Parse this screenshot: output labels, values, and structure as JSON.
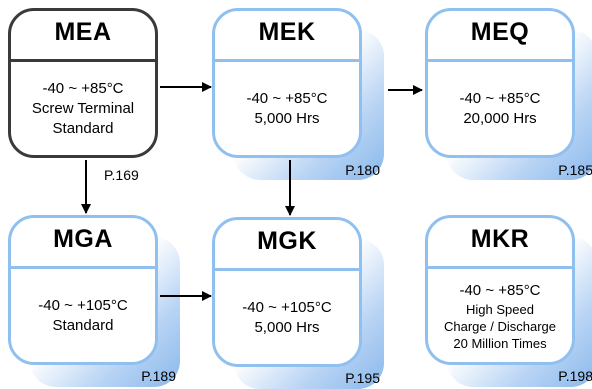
{
  "cards": {
    "mea": {
      "title": "MEA",
      "lines": [
        "-40 ~ +85°C",
        "Screw Terminal",
        "Standard"
      ],
      "page": "P.169"
    },
    "mek": {
      "title": "MEK",
      "lines": [
        "-40 ~ +85°C",
        "5,000 Hrs"
      ],
      "page": "P.180"
    },
    "meq": {
      "title": "MEQ",
      "lines": [
        "-40 ~ +85°C",
        "20,000 Hrs"
      ],
      "page": "P.185"
    },
    "mga": {
      "title": "MGA",
      "lines": [
        "-40 ~ +105°C",
        "Standard"
      ],
      "page": "P.189"
    },
    "mgk": {
      "title": "MGK",
      "lines": [
        "-40 ~ +105°C",
        "5,000 Hrs"
      ],
      "page": "P.195"
    },
    "mkr": {
      "title": "MKR",
      "lines": [
        "-40 ~ +85°C",
        "High Speed",
        "Charge / Discharge",
        "20 Million Times"
      ],
      "page": "P.198"
    }
  },
  "colors": {
    "box_border": "#8fc0ef",
    "box_border_dark": "#3a3a3a",
    "shadow": "#8ab8ec",
    "arrow": "#000000"
  }
}
